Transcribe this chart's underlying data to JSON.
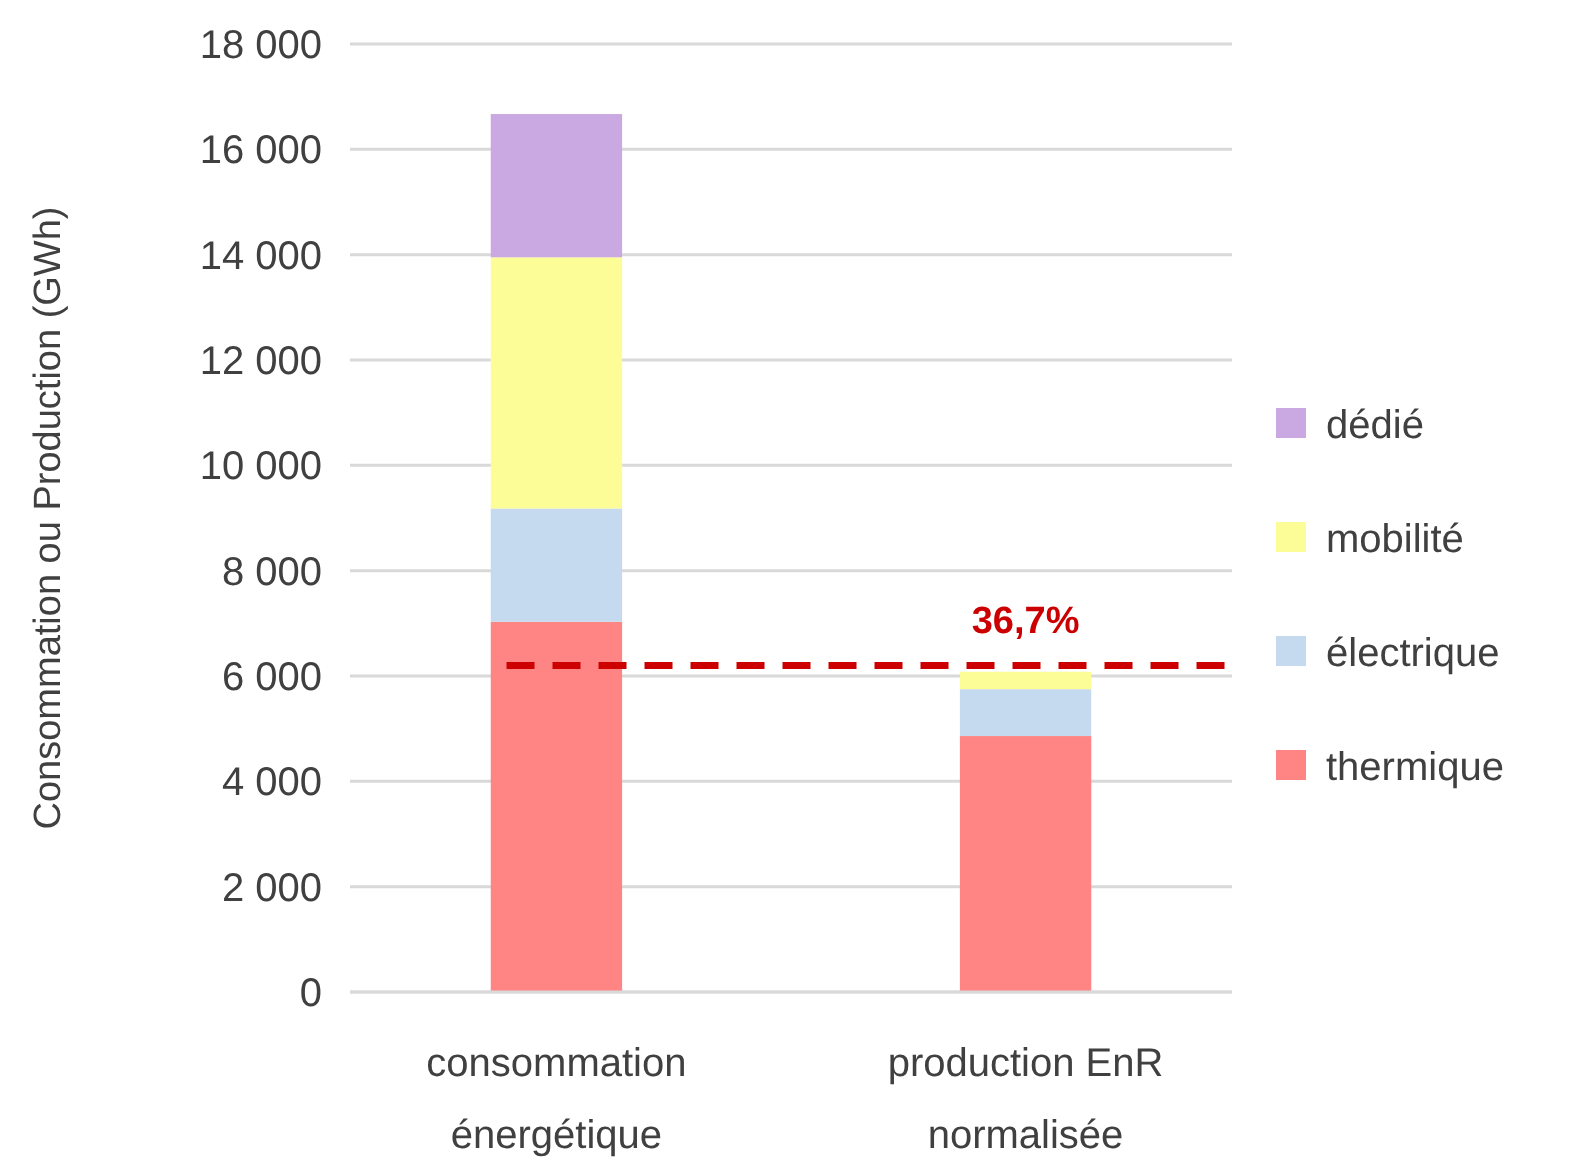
{
  "chart_data": {
    "type": "bar",
    "stacked": true,
    "ylabel": "Consommation ou Production (GWh)",
    "categories": [
      "consommation énergétique",
      "production EnR normalisée"
    ],
    "series": [
      {
        "name": "thermique",
        "color": "#ff8585",
        "values": [
          7030,
          4860
        ]
      },
      {
        "name": "électrique",
        "color": "#c5daee",
        "values": [
          2150,
          890
        ]
      },
      {
        "name": "mobilité",
        "color": "#fdfd98",
        "values": [
          4770,
          330
        ]
      },
      {
        "name": "dédié",
        "color": "#caa8e2",
        "values": [
          2720,
          null
        ]
      }
    ],
    "ylim": [
      0,
      18000
    ],
    "yticks": [
      {
        "value": 0,
        "label": "0"
      },
      {
        "value": 2000,
        "label": "2 000"
      },
      {
        "value": 4000,
        "label": "4 000"
      },
      {
        "value": 6000,
        "label": "6 000"
      },
      {
        "value": 8000,
        "label": "8 000"
      },
      {
        "value": 10000,
        "label": "10 000"
      },
      {
        "value": 12000,
        "label": "12 000"
      },
      {
        "value": 14000,
        "label": "14 000"
      },
      {
        "value": 16000,
        "label": "16 000"
      },
      {
        "value": 18000,
        "label": "18 000"
      }
    ],
    "grid": "y",
    "legend": "right",
    "annotations": [
      "36,7%"
    ],
    "ref_lines": [
      {
        "axis": "y",
        "value": 6200,
        "color": "#cc0000",
        "line_style": "dashed"
      }
    ]
  }
}
